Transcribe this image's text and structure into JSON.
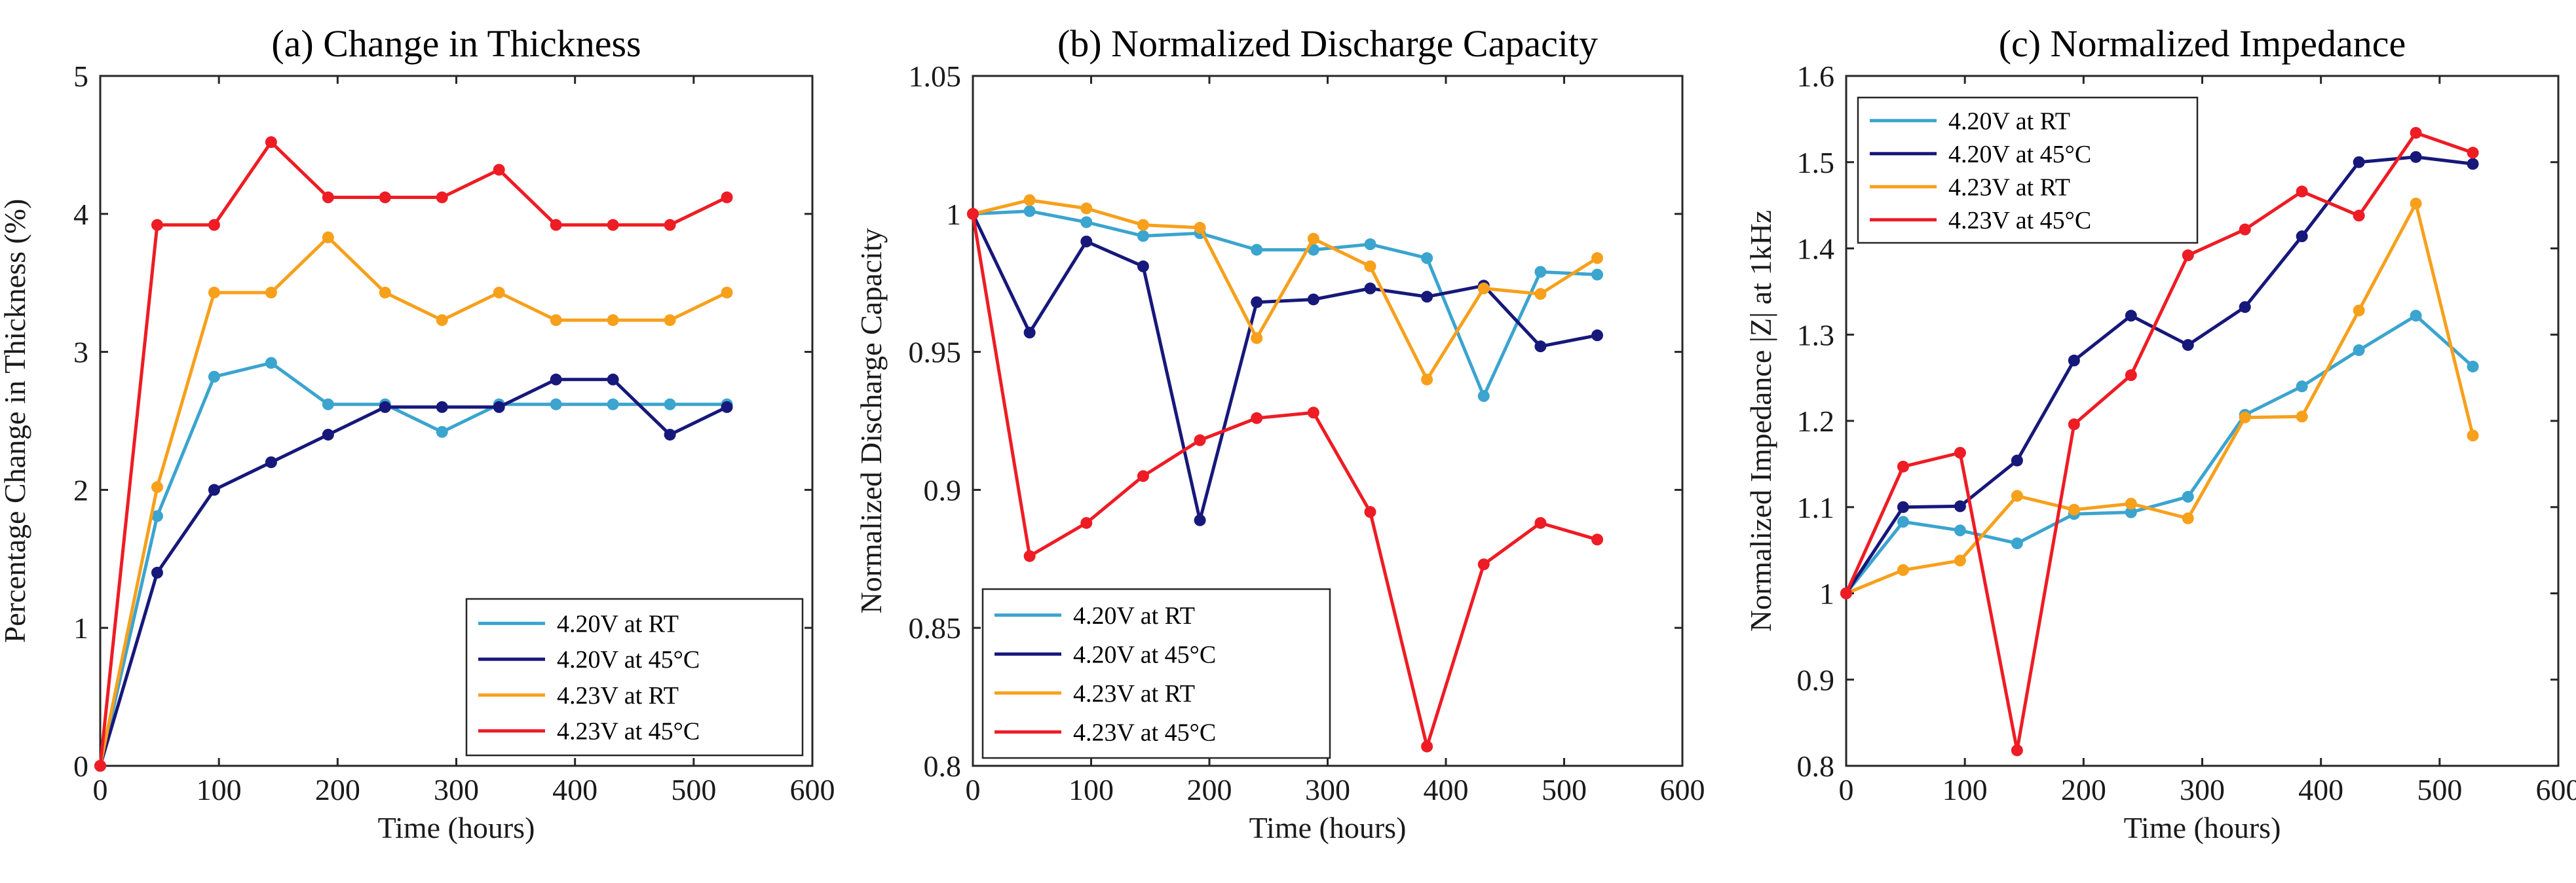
{
  "chart_data": [
    {
      "type": "line",
      "title": "(a) Change in Thickness",
      "xlabel": "Time (hours)",
      "ylabel": "Percentage Change in Thickness (%)",
      "xlim": [
        0,
        600
      ],
      "ylim": [
        0,
        5
      ],
      "xticks": [
        0,
        100,
        200,
        300,
        400,
        500,
        600
      ],
      "yticks": [
        0,
        1,
        2,
        3,
        4,
        5
      ],
      "ytick_labels": [
        "0",
        "1",
        "2",
        "3",
        "4",
        "5"
      ],
      "legend_position": "bottom-right",
      "x": [
        0,
        48,
        96,
        144,
        192,
        240,
        288,
        336,
        384,
        432,
        480,
        528
      ],
      "series": [
        {
          "name": "4.20V at RT",
          "color": "#3BA4CF",
          "values": [
            0,
            1.81,
            2.82,
            2.92,
            2.62,
            2.62,
            2.42,
            2.62,
            2.62,
            2.62,
            2.62,
            2.62
          ]
        },
        {
          "name": "4.20V at 45°C",
          "color": "#16187A",
          "values": [
            0,
            1.4,
            2.0,
            2.2,
            2.4,
            2.6,
            2.6,
            2.6,
            2.8,
            2.8,
            2.4,
            2.6
          ]
        },
        {
          "name": "4.23V at RT",
          "color": "#F7A01C",
          "values": [
            0,
            2.02,
            3.43,
            3.43,
            3.83,
            3.43,
            3.23,
            3.43,
            3.23,
            3.23,
            3.23,
            3.43
          ]
        },
        {
          "name": "4.23V at 45°C",
          "color": "#EE1C24",
          "values": [
            0,
            3.92,
            3.92,
            4.52,
            4.12,
            4.12,
            4.12,
            4.32,
            3.92,
            3.92,
            3.92,
            4.12
          ]
        }
      ]
    },
    {
      "type": "line",
      "title": "(b) Normalized Discharge Capacity",
      "xlabel": "Time (hours)",
      "ylabel": "Normalized Discharge Capacity",
      "xlim": [
        0,
        600
      ],
      "ylim": [
        0.8,
        1.05
      ],
      "xticks": [
        0,
        100,
        200,
        300,
        400,
        500,
        600
      ],
      "yticks": [
        0.8,
        0.85,
        0.9,
        0.95,
        1.0,
        1.05
      ],
      "ytick_labels": [
        "0.8",
        "0.85",
        "0.9",
        "0.95",
        "1",
        "1.05"
      ],
      "legend_position": "bottom-left",
      "x": [
        0,
        48,
        96,
        144,
        192,
        240,
        288,
        336,
        384,
        432,
        480,
        528
      ],
      "series": [
        {
          "name": "4.20V at RT",
          "color": "#3BA4CF",
          "values": [
            1.0,
            1.001,
            0.997,
            0.992,
            0.993,
            0.987,
            0.987,
            0.989,
            0.984,
            0.934,
            0.979,
            0.978
          ]
        },
        {
          "name": "4.20V at 45°C",
          "color": "#16187A",
          "values": [
            1.0,
            0.957,
            0.99,
            0.981,
            0.889,
            0.968,
            0.969,
            0.973,
            0.97,
            0.974,
            0.952,
            0.956
          ]
        },
        {
          "name": "4.23V at RT",
          "color": "#F7A01C",
          "values": [
            1.0,
            1.005,
            1.002,
            0.996,
            0.995,
            0.955,
            0.991,
            0.981,
            0.94,
            0.973,
            0.971,
            0.984
          ]
        },
        {
          "name": "4.23V at 45°C",
          "color": "#EE1C24",
          "values": [
            1.0,
            0.876,
            0.888,
            0.905,
            0.918,
            0.926,
            0.928,
            0.892,
            0.807,
            0.873,
            0.888,
            0.882
          ]
        }
      ]
    },
    {
      "type": "line",
      "title": "(c) Normalized Impedance",
      "xlabel": "Time (hours)",
      "ylabel": "Normalized Impedance |Z| at 1kHz",
      "xlim": [
        0,
        600
      ],
      "ylim": [
        0.8,
        1.6
      ],
      "xticks": [
        0,
        100,
        200,
        300,
        400,
        500,
        600
      ],
      "yticks": [
        0.8,
        0.9,
        1.0,
        1.1,
        1.2,
        1.3,
        1.4,
        1.5,
        1.6
      ],
      "ytick_labels": [
        "0.8",
        "0.9",
        "1",
        "1.1",
        "1.2",
        "1.3",
        "1.4",
        "1.5",
        "1.6"
      ],
      "legend_position": "top-left",
      "x": [
        0,
        48,
        96,
        144,
        192,
        240,
        288,
        336,
        384,
        432,
        480,
        528
      ],
      "series": [
        {
          "name": "4.20V at RT",
          "color": "#3BA4CF",
          "values": [
            1.0,
            1.083,
            1.073,
            1.058,
            1.092,
            1.094,
            1.112,
            1.207,
            1.24,
            1.282,
            1.322,
            1.263
          ]
        },
        {
          "name": "4.20V at 45°C",
          "color": "#16187A",
          "values": [
            1.0,
            1.1,
            1.101,
            1.154,
            1.27,
            1.322,
            1.288,
            1.332,
            1.414,
            1.5,
            1.506,
            1.498
          ]
        },
        {
          "name": "4.23V at RT",
          "color": "#F7A01C",
          "values": [
            1.0,
            1.027,
            1.038,
            1.113,
            1.097,
            1.104,
            1.087,
            1.204,
            1.205,
            1.328,
            1.452,
            1.183
          ]
        },
        {
          "name": "4.23V at 45°C",
          "color": "#EE1C24",
          "values": [
            1.0,
            1.147,
            1.163,
            0.818,
            1.196,
            1.253,
            1.392,
            1.422,
            1.466,
            1.438,
            1.534,
            1.511
          ]
        }
      ]
    }
  ]
}
